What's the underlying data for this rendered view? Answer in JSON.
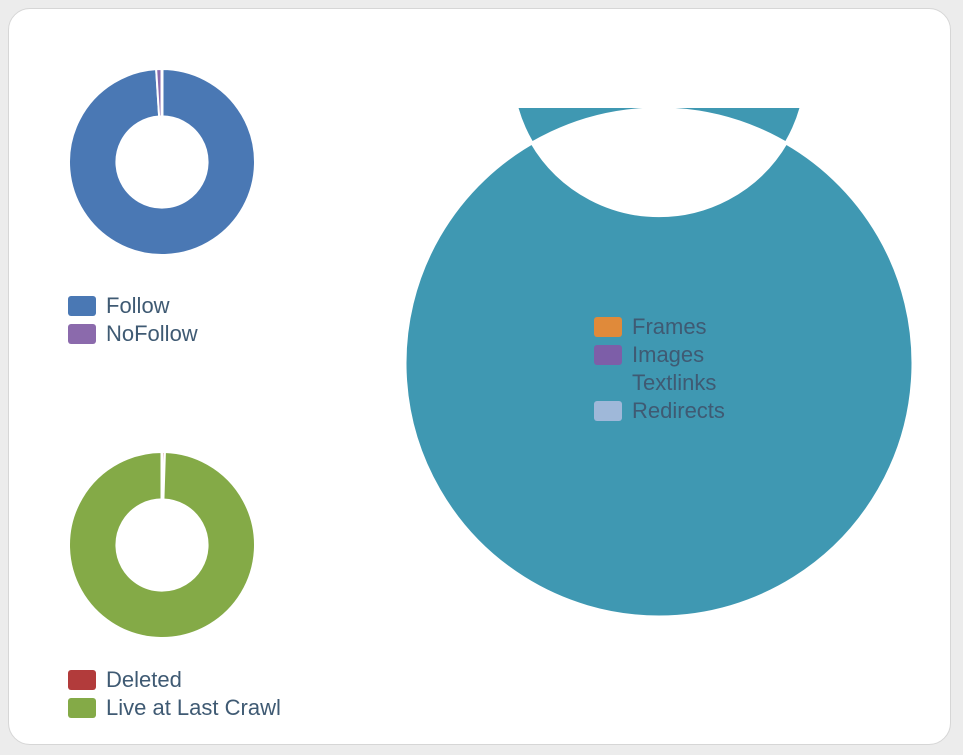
{
  "chart_data": [
    {
      "type": "pie",
      "style": "donut",
      "categories": [
        "Follow",
        "NoFollow"
      ],
      "values": [
        99,
        1
      ],
      "colors": [
        "#4a78b4",
        "#8b6aac"
      ],
      "legend": "bottom-left"
    },
    {
      "type": "pie",
      "style": "donut",
      "categories": [
        "Deleted",
        "Live at Last Crawl"
      ],
      "values": [
        0.5,
        99.5
      ],
      "colors": [
        "#b23b3b",
        "#84aa47"
      ],
      "legend": "bottom-left"
    },
    {
      "type": "pie",
      "style": "donut",
      "categories": [
        "Frames",
        "Images",
        "Textlinks",
        "Redirects"
      ],
      "values": [
        0,
        0,
        100,
        0
      ],
      "colors": [
        "#e08a3a",
        "#7d5ea8",
        "#3f98b2",
        "#9fb8d9"
      ],
      "legend": "center"
    }
  ]
}
